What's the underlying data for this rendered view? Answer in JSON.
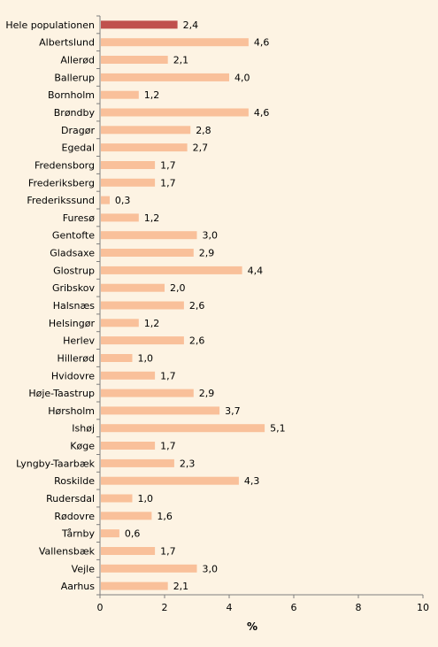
{
  "chart_data": {
    "type": "bar",
    "orientation": "horizontal",
    "categories": [
      "Hele populationen",
      "Albertslund",
      "Allerød",
      "Ballerup",
      "Bornholm",
      "Brøndby",
      "Dragør",
      "Egedal",
      "Fredensborg",
      "Frederiksberg",
      "Frederikssund",
      "Furesø",
      "Gentofte",
      "Gladsaxe",
      "Glostrup",
      "Gribskov",
      "Halsnæs",
      "Helsingør",
      "Herlev",
      "Hillerød",
      "Hvidovre",
      "Høje-Taastrup",
      "Hørsholm",
      "Ishøj",
      "Køge",
      "Lyngby-Taarbæk",
      "Roskilde",
      "Rudersdal",
      "Rødovre",
      "Tårnby",
      "Vallensbæk",
      "Vejle",
      "Aarhus"
    ],
    "values": [
      2.4,
      4.6,
      2.1,
      4.0,
      1.2,
      4.6,
      2.8,
      2.7,
      1.7,
      1.7,
      0.3,
      1.2,
      3.0,
      2.9,
      4.4,
      2.0,
      2.6,
      1.2,
      2.6,
      1.0,
      1.7,
      2.9,
      3.7,
      5.1,
      1.7,
      2.3,
      4.3,
      1.0,
      1.6,
      0.6,
      1.7,
      3.0,
      2.1
    ],
    "value_labels": [
      "2,4",
      "4,6",
      "2,1",
      "4,0",
      "1,2",
      "4,6",
      "2,8",
      "2,7",
      "1,7",
      "1,7",
      "0,3",
      "1,2",
      "3,0",
      "2,9",
      "4,4",
      "2,0",
      "2,6",
      "1,2",
      "2,6",
      "1,0",
      "1,7",
      "2,9",
      "3,7",
      "5,1",
      "1,7",
      "2,3",
      "4,3",
      "1,0",
      "1,6",
      "0,6",
      "1,7",
      "3,0",
      "2,1"
    ],
    "highlight_index": 0,
    "xlim": [
      0,
      10
    ],
    "x_ticks": [
      "0",
      "2",
      "4",
      "6",
      "8",
      "10"
    ],
    "xlabel": "%",
    "ylabel": "",
    "title": "",
    "grid": false,
    "colors": {
      "highlight": "#c0504d",
      "bar": "#f9c09a",
      "background": "#fdf3e3",
      "axis": "#7f7f7f"
    }
  }
}
